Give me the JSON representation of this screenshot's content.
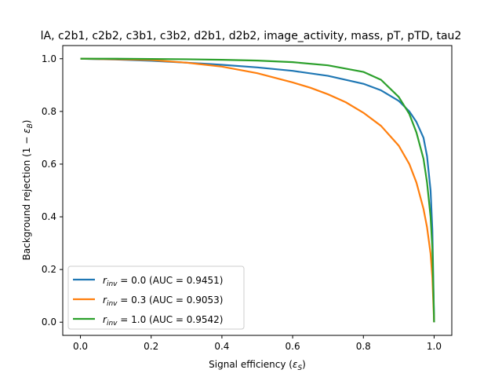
{
  "chart_data": {
    "type": "line",
    "title": "lA, c2b1, c2b2, c3b1, c3b2, d2b1, d2b2, image_activity, mass, pT, pTD, tau2",
    "xlabel": "Signal efficiency (ε_S)",
    "ylabel": "Background rejection (1 − ε_B)",
    "xlim": [
      -0.05,
      1.05
    ],
    "ylim": [
      -0.05,
      1.05
    ],
    "xticks": [
      "0.0",
      "0.2",
      "0.4",
      "0.6",
      "0.8",
      "1.0"
    ],
    "yticks": [
      "0.0",
      "0.2",
      "0.4",
      "0.6",
      "0.8",
      "1.0"
    ],
    "grid": false,
    "legend_position": "lower-left",
    "series": [
      {
        "name": "r_inv = 0.0",
        "legend_label": "(AUC  = 0.9451)",
        "color": "#1f77b4",
        "x": [
          0.0,
          0.1,
          0.2,
          0.3,
          0.4,
          0.5,
          0.6,
          0.7,
          0.8,
          0.85,
          0.9,
          0.93,
          0.95,
          0.97,
          0.98,
          0.99,
          0.995,
          1.0
        ],
        "y": [
          1.0,
          0.997,
          0.992,
          0.985,
          0.977,
          0.967,
          0.954,
          0.935,
          0.905,
          0.88,
          0.84,
          0.8,
          0.76,
          0.7,
          0.63,
          0.5,
          0.35,
          0.0
        ]
      },
      {
        "name": "r_inv = 0.3",
        "legend_label": "(AUC  = 0.9053)",
        "color": "#ff7f0e",
        "x": [
          0.0,
          0.1,
          0.2,
          0.3,
          0.4,
          0.5,
          0.6,
          0.65,
          0.7,
          0.75,
          0.8,
          0.85,
          0.9,
          0.93,
          0.95,
          0.97,
          0.98,
          0.99,
          0.995,
          1.0
        ],
        "y": [
          1.0,
          0.998,
          0.995,
          0.985,
          0.97,
          0.945,
          0.91,
          0.89,
          0.865,
          0.835,
          0.795,
          0.745,
          0.67,
          0.6,
          0.53,
          0.43,
          0.36,
          0.26,
          0.17,
          0.0
        ]
      },
      {
        "name": "r_inv = 1.0",
        "legend_label": "(AUC  = 0.9542)",
        "color": "#2ca02c",
        "x": [
          0.0,
          0.1,
          0.2,
          0.3,
          0.4,
          0.5,
          0.6,
          0.7,
          0.8,
          0.85,
          0.9,
          0.93,
          0.95,
          0.97,
          0.98,
          0.99,
          0.995,
          1.0
        ],
        "y": [
          1.0,
          1.0,
          0.999,
          0.998,
          0.996,
          0.993,
          0.987,
          0.975,
          0.95,
          0.92,
          0.855,
          0.79,
          0.72,
          0.62,
          0.53,
          0.4,
          0.28,
          0.0
        ]
      }
    ]
  }
}
